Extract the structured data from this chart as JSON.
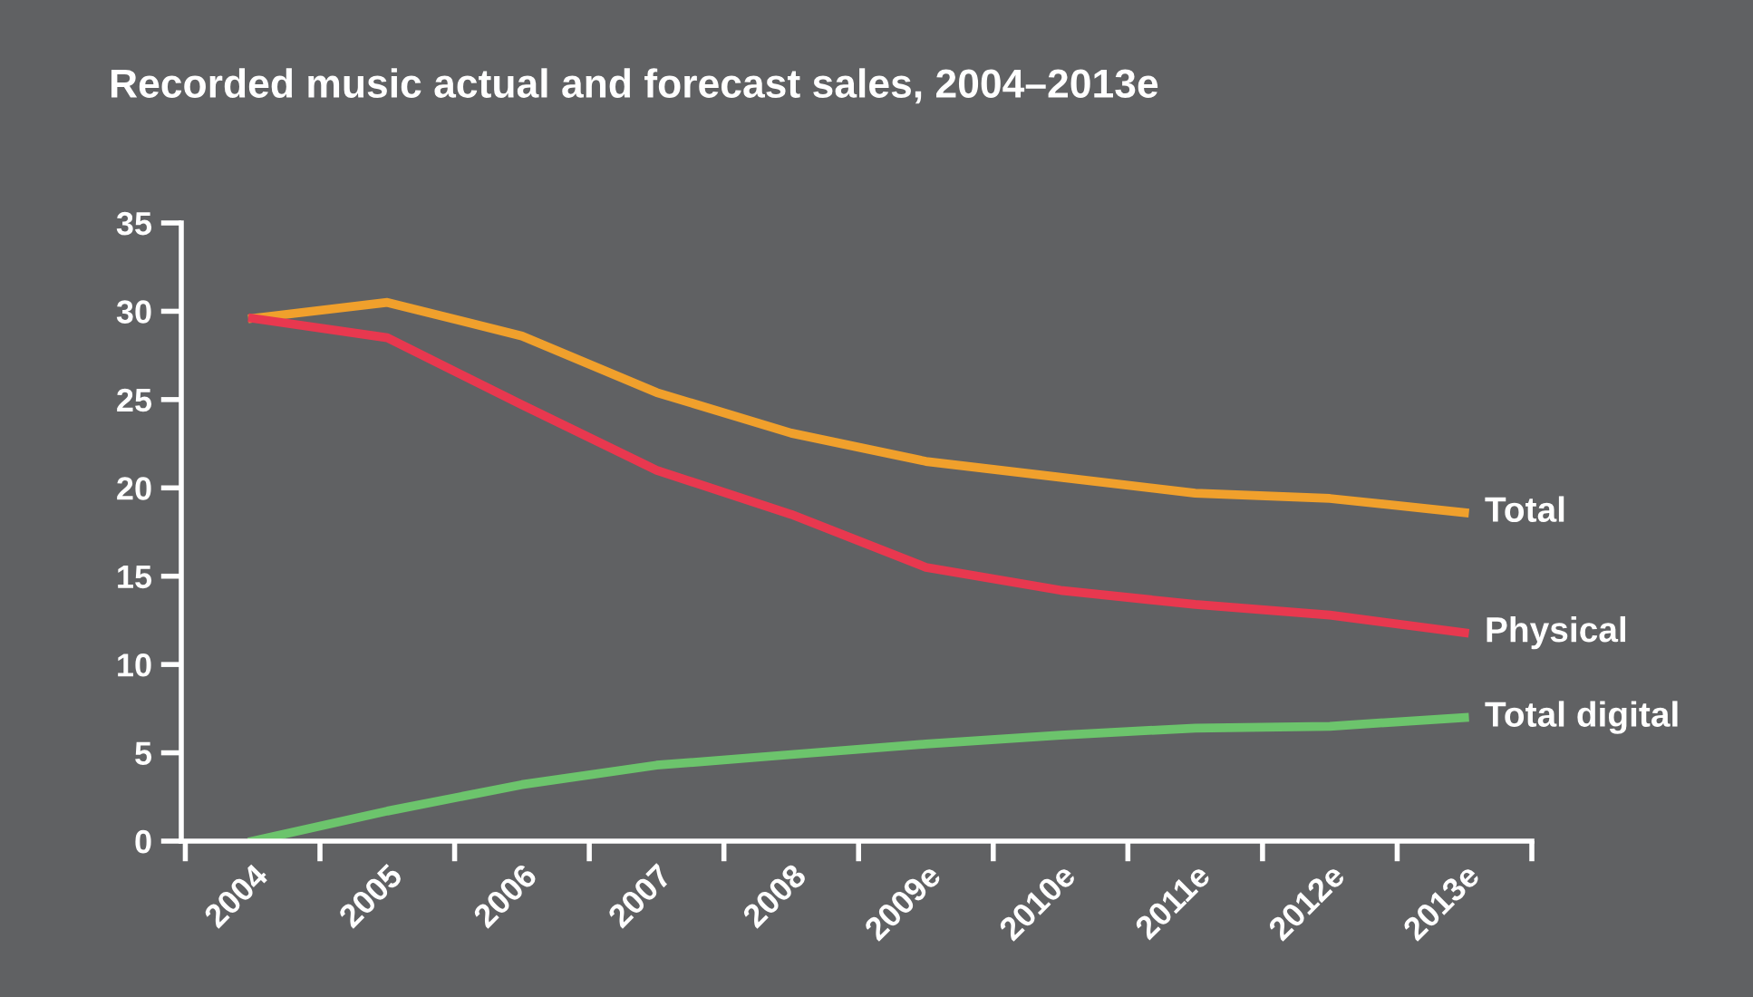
{
  "chart_data": {
    "type": "line",
    "title": "Recorded music actual and forecast sales, 2004–2013e",
    "categories": [
      "2004",
      "2005",
      "2006",
      "2007",
      "2008",
      "2009e",
      "2010e",
      "2011e",
      "2012e",
      "2013e"
    ],
    "series": [
      {
        "name": "Total",
        "color": "#f0a02c",
        "values": [
          29.6,
          30.5,
          28.6,
          25.4,
          23.1,
          21.5,
          20.6,
          19.7,
          19.4,
          18.6
        ]
      },
      {
        "name": "Physical",
        "color": "#e8384f",
        "values": [
          29.6,
          28.5,
          24.7,
          21.0,
          18.5,
          15.5,
          14.2,
          13.4,
          12.8,
          11.8
        ]
      },
      {
        "name": "Total digital",
        "color": "#6cc46c",
        "values": [
          0,
          1.7,
          3.2,
          4.3,
          4.9,
          5.5,
          6.0,
          6.4,
          6.5,
          7.0
        ]
      }
    ],
    "ylim": [
      0,
      35
    ],
    "yticks": [
      0,
      5,
      10,
      15,
      20,
      25,
      30,
      35
    ],
    "grid": false,
    "legend": false,
    "marker": "none",
    "line_style": "solid"
  }
}
